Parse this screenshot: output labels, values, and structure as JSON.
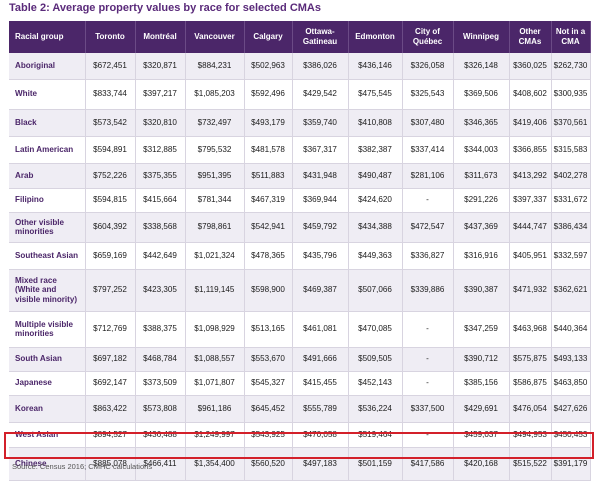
{
  "title": "Table 2: Average property values by race for selected CMAs",
  "columns": [
    "Racial group",
    "Toronto",
    "Montréal",
    "Vancouver",
    "Calgary",
    "Ottawa-Gatineau",
    "Edmonton",
    "City of Québec",
    "Winnipeg",
    "Other CMAs",
    "Not in a CMA"
  ],
  "rows": [
    {
      "label": "Aboriginal",
      "values": [
        "$672,451",
        "$320,871",
        "$884,231",
        "$502,963",
        "$386,026",
        "$436,146",
        "$326,058",
        "$326,148",
        "$360,025",
        "$262,730"
      ]
    },
    {
      "label": "White",
      "values": [
        "$833,744",
        "$397,217",
        "$1,085,203",
        "$592,496",
        "$429,542",
        "$475,545",
        "$325,543",
        "$369,506",
        "$408,602",
        "$300,935"
      ]
    },
    {
      "label": "Black",
      "values": [
        "$573,542",
        "$320,810",
        "$732,497",
        "$493,179",
        "$359,740",
        "$410,808",
        "$307,480",
        "$346,365",
        "$419,406",
        "$370,561"
      ]
    },
    {
      "label": "Latin American",
      "values": [
        "$594,891",
        "$312,885",
        "$795,532",
        "$481,578",
        "$367,317",
        "$382,387",
        "$337,414",
        "$344,003",
        "$366,855",
        "$315,583"
      ]
    },
    {
      "label": "Arab",
      "values": [
        "$752,226",
        "$375,355",
        "$951,395",
        "$511,883",
        "$431,948",
        "$490,487",
        "$281,106",
        "$311,673",
        "$413,292",
        "$402,278"
      ]
    },
    {
      "label": "Filipino",
      "values": [
        "$594,815",
        "$415,664",
        "$781,344",
        "$467,319",
        "$369,944",
        "$424,620",
        "-",
        "$291,226",
        "$397,337",
        "$331,672"
      ]
    },
    {
      "label": "Other visible minorities",
      "values": [
        "$604,392",
        "$338,568",
        "$798,861",
        "$542,941",
        "$459,792",
        "$434,388",
        "$472,547",
        "$437,369",
        "$444,747",
        "$386,434"
      ]
    },
    {
      "label": "Southeast Asian",
      "values": [
        "$659,169",
        "$442,649",
        "$1,021,324",
        "$478,365",
        "$435,796",
        "$449,363",
        "$336,827",
        "$316,916",
        "$405,951",
        "$332,597"
      ]
    },
    {
      "label": "Mixed race (White and visible minority)",
      "values": [
        "$797,252",
        "$423,305",
        "$1,119,145",
        "$598,900",
        "$469,387",
        "$507,066",
        "$339,886",
        "$390,387",
        "$471,932",
        "$362,621"
      ]
    },
    {
      "label": "Multiple visible minorities",
      "values": [
        "$712,769",
        "$388,375",
        "$1,098,929",
        "$513,165",
        "$461,081",
        "$470,085",
        "-",
        "$347,259",
        "$463,968",
        "$440,364"
      ]
    },
    {
      "label": "South Asian",
      "values": [
        "$697,182",
        "$468,784",
        "$1,088,557",
        "$553,670",
        "$491,666",
        "$509,505",
        "-",
        "$390,712",
        "$575,875",
        "$493,133"
      ]
    },
    {
      "label": "Japanese",
      "values": [
        "$692,147",
        "$373,509",
        "$1,071,807",
        "$545,327",
        "$415,455",
        "$452,143",
        "-",
        "$385,156",
        "$586,875",
        "$463,850"
      ]
    },
    {
      "label": "Korean",
      "values": [
        "$863,422",
        "$573,808",
        "$961,186",
        "$645,452",
        "$555,789",
        "$536,224",
        "$337,500",
        "$429,691",
        "$476,054",
        "$427,626"
      ]
    },
    {
      "label": "West Asian",
      "values": [
        "$894,527",
        "$436,488",
        "$1,249,997",
        "$543,925",
        "$470,058",
        "$519,464",
        "-",
        "$459,037",
        "$494,953",
        "$450,453"
      ]
    },
    {
      "label": "Chinese",
      "values": [
        "$885,078",
        "$466,411",
        "$1,354,400",
        "$560,520",
        "$497,183",
        "$501,159",
        "$417,586",
        "$420,168",
        "$515,522",
        "$391,179"
      ]
    }
  ],
  "source": "Source: Census 2016; CMHC calculations",
  "colors": {
    "header_bg": "#4b2669",
    "stripe": "#efedf4",
    "label_text": "#4b2669",
    "highlight_border": "#d3202a",
    "title": "#5a2a7a"
  }
}
